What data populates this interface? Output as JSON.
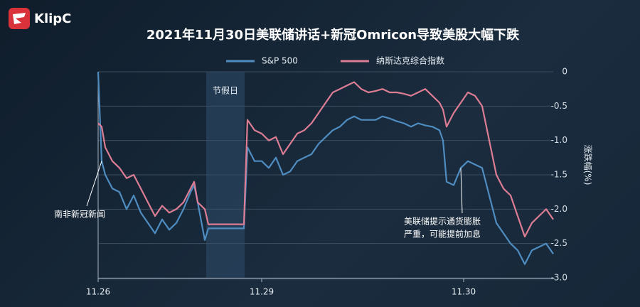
{
  "logo": "KlipC",
  "chart_data": {
    "type": "line",
    "title": "2021年11月30日美联储讲话+新冠Omricon导致美股大幅下跌",
    "y_axis_label": "涨跌幅(%)",
    "x": [
      0,
      1,
      2,
      4,
      6,
      8,
      10,
      12,
      14,
      16,
      18,
      20,
      22,
      24,
      26,
      27,
      28,
      30,
      31,
      41,
      42,
      44,
      46,
      48,
      50,
      52,
      54,
      56,
      58,
      60,
      62,
      64,
      66,
      68,
      70,
      72,
      74,
      76,
      78,
      80,
      82,
      84,
      86,
      88,
      90,
      92,
      94,
      96,
      97,
      98,
      100,
      102,
      104,
      106,
      108,
      110,
      112,
      114,
      116,
      118,
      120,
      122,
      124,
      126,
      128
    ],
    "xlim": [
      0,
      130
    ],
    "xticks": [
      {
        "value": 0,
        "label": "11.26"
      },
      {
        "value": 46,
        "label": "11.29"
      },
      {
        "value": 102.8,
        "label": "11.30"
      }
    ],
    "ylim": [
      -3,
      0
    ],
    "yticks": [
      0,
      -0.5,
      {
        "value": -1,
        "label": "-1.0"
      },
      -1.5,
      {
        "value": -2,
        "label": "-2.0"
      },
      -2.5,
      {
        "value": -3,
        "label": "-3.0"
      }
    ],
    "grid": true,
    "legend": "top",
    "series": [
      {
        "name": "S&P 500",
        "color": "#4f8cc0",
        "values": [
          0,
          -1.3,
          -1.5,
          -1.7,
          -1.75,
          -2.0,
          -1.8,
          -2.05,
          -2.2,
          -2.35,
          -2.15,
          -2.3,
          -2.2,
          -2.0,
          -1.75,
          -1.65,
          -1.9,
          -2.45,
          -2.28,
          -2.28,
          -1.1,
          -1.3,
          -1.3,
          -1.4,
          -1.25,
          -1.5,
          -1.45,
          -1.3,
          -1.25,
          -1.2,
          -1.05,
          -0.95,
          -0.85,
          -0.8,
          -0.7,
          -0.65,
          -0.7,
          -0.7,
          -0.7,
          -0.65,
          -0.68,
          -0.72,
          -0.75,
          -0.8,
          -0.75,
          -0.78,
          -0.8,
          -0.85,
          -1.0,
          -1.6,
          -1.65,
          -1.4,
          -1.3,
          -1.35,
          -1.4,
          -1.8,
          -2.2,
          -2.35,
          -2.5,
          -2.6,
          -2.8,
          -2.6,
          -2.55,
          -2.5,
          -2.65
        ]
      },
      {
        "name": "纳斯达克综合指数",
        "color": "#dc7d94",
        "values": [
          -0.75,
          -0.8,
          -1.1,
          -1.3,
          -1.4,
          -1.55,
          -1.5,
          -1.7,
          -1.9,
          -2.1,
          -1.95,
          -2.05,
          -2.0,
          -1.9,
          -1.7,
          -1.6,
          -1.9,
          -2.0,
          -2.22,
          -2.22,
          -0.7,
          -0.85,
          -0.9,
          -1.0,
          -0.95,
          -1.2,
          -1.05,
          -0.9,
          -0.85,
          -0.75,
          -0.6,
          -0.45,
          -0.3,
          -0.25,
          -0.2,
          -0.15,
          -0.25,
          -0.3,
          -0.28,
          -0.25,
          -0.3,
          -0.3,
          -0.32,
          -0.35,
          -0.3,
          -0.25,
          -0.35,
          -0.45,
          -0.55,
          -0.8,
          -0.6,
          -0.45,
          -0.3,
          -0.35,
          -0.5,
          -1.0,
          -1.5,
          -1.7,
          -1.8,
          -2.1,
          -2.4,
          -2.2,
          -2.1,
          -2.0,
          -2.15
        ]
      }
    ],
    "highlight": {
      "label": "节假日",
      "x": [
        30.4,
        41.2
      ]
    },
    "annotations": [
      {
        "lines": [
          "南非新冠新闻"
        ],
        "x": 1,
        "y": -1.3
      },
      {
        "lines": [
          "美联储提示通货膨胀",
          "严重，可能提前加息"
        ],
        "x": 102,
        "y": -1.4
      }
    ]
  }
}
